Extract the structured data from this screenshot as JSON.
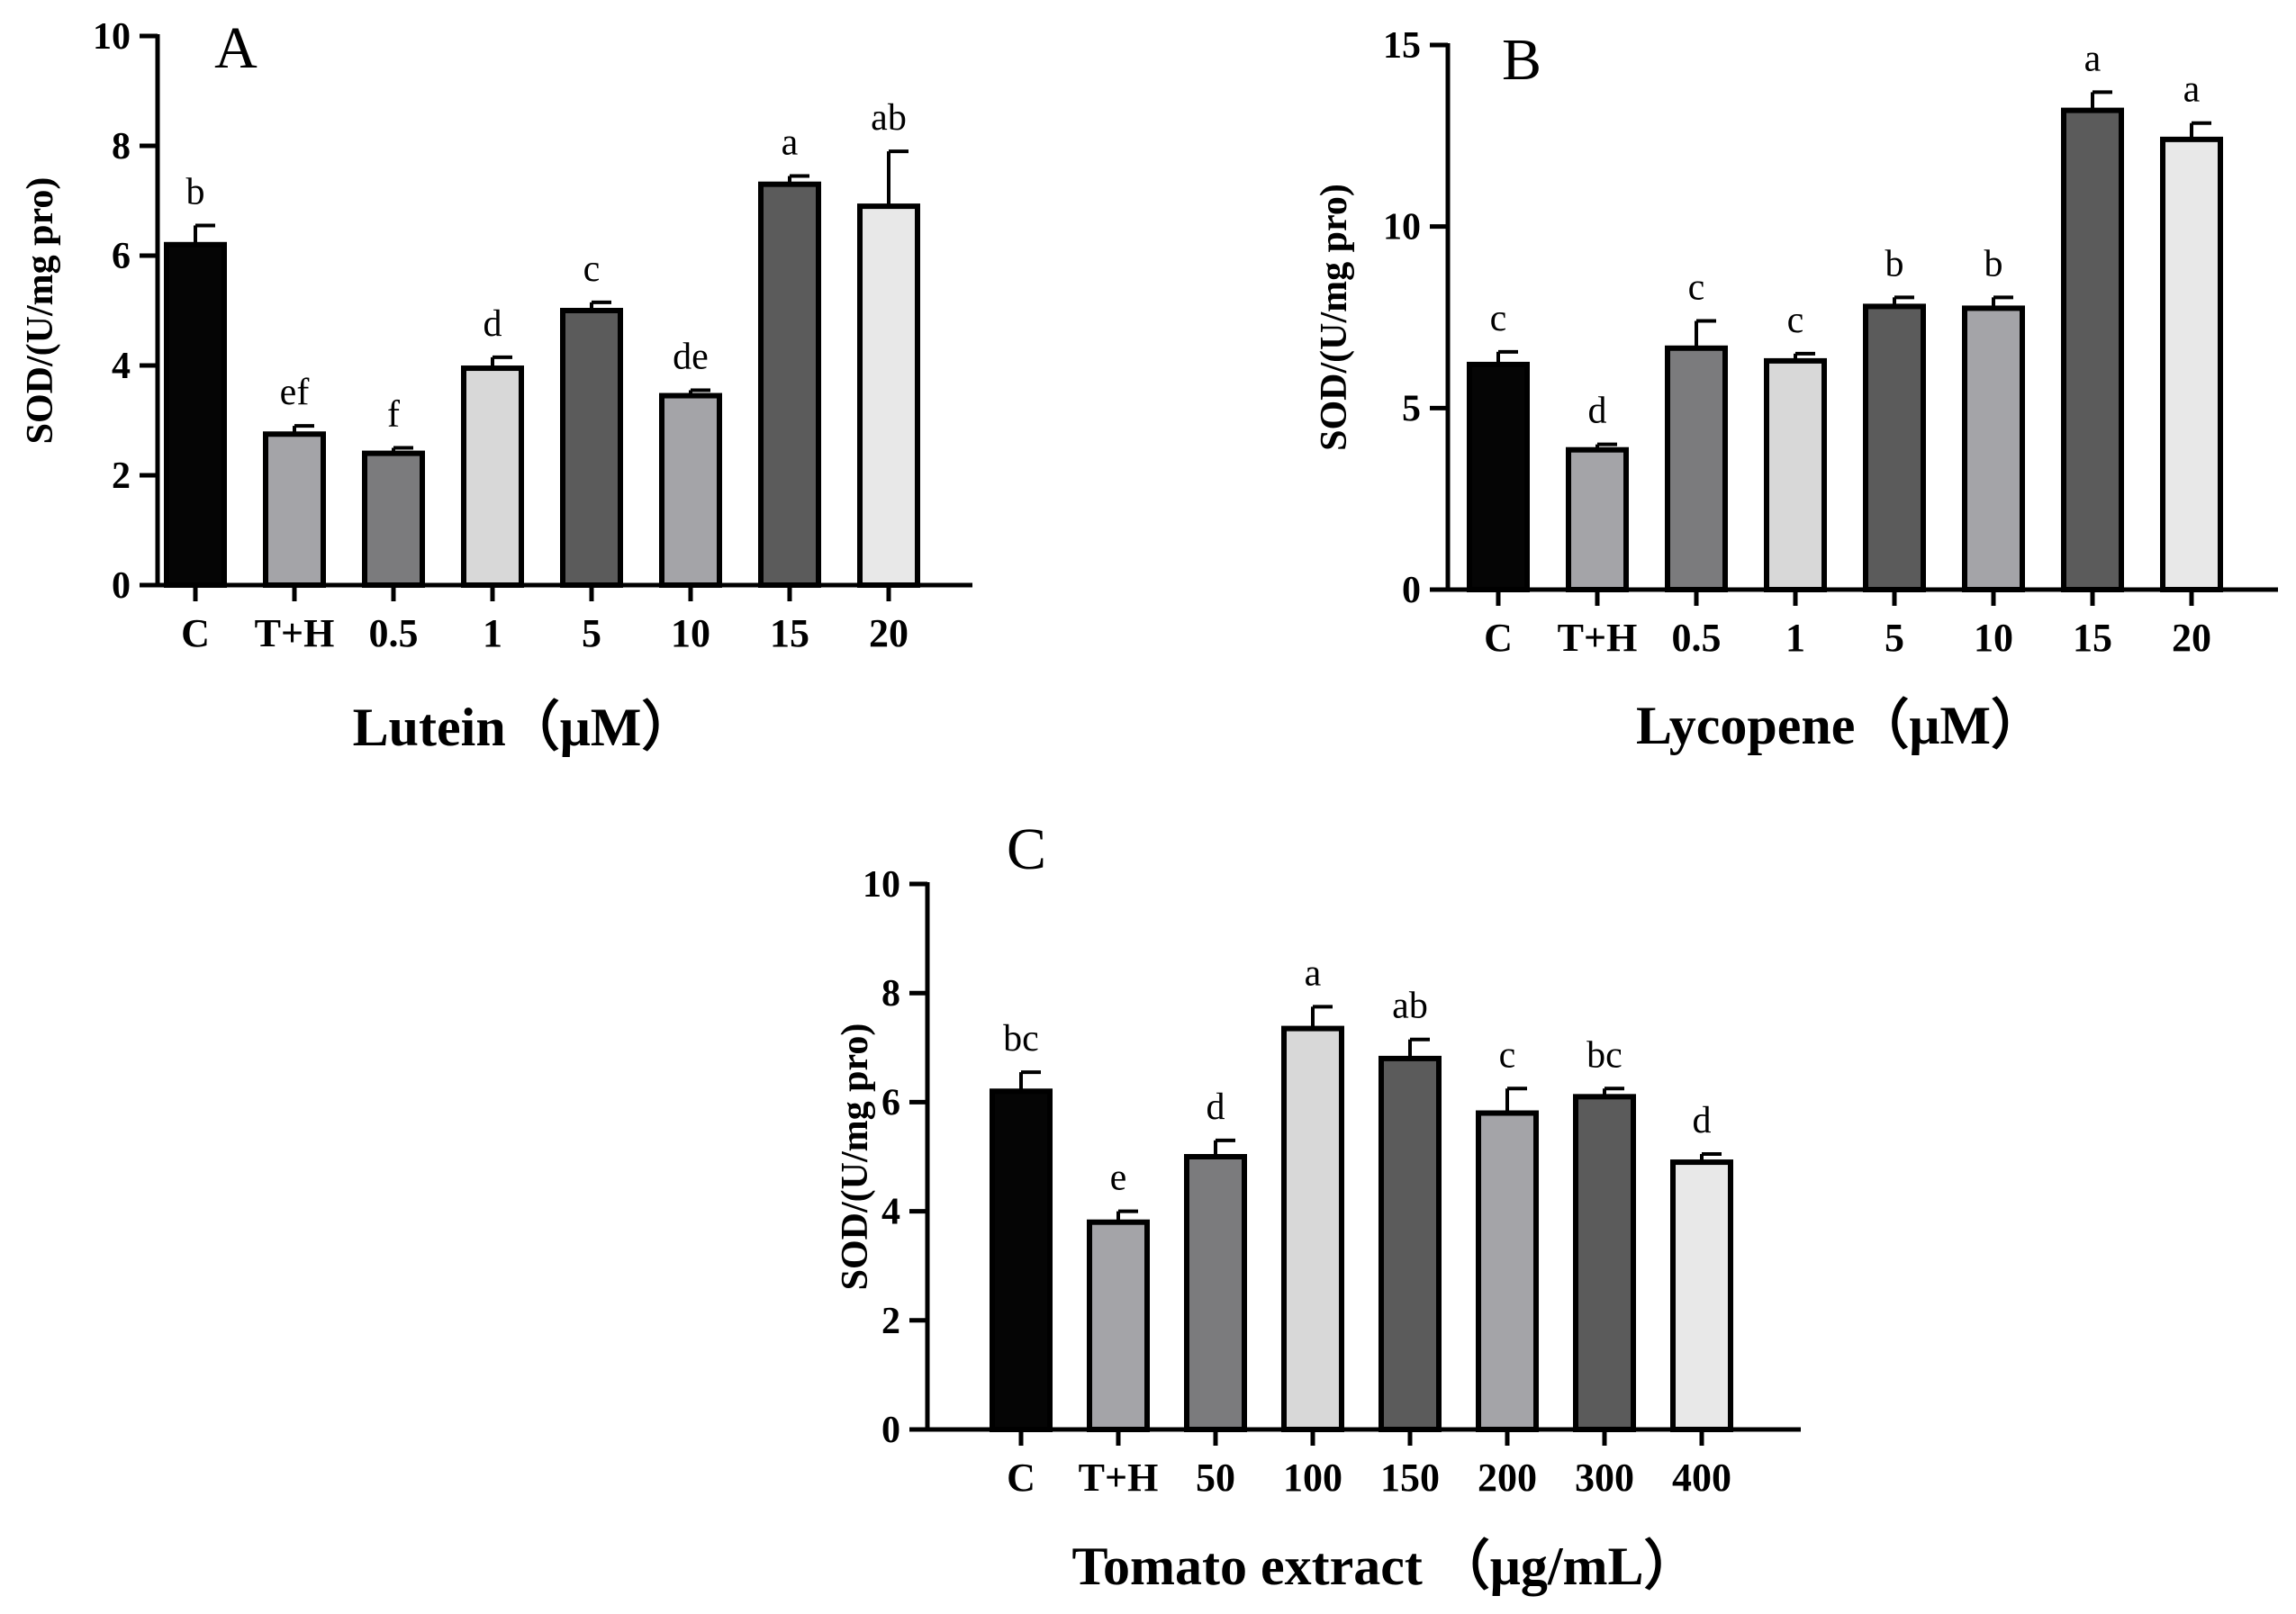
{
  "chart_data": [
    {
      "type": "bar",
      "panel": "A",
      "ylabel": "SOD/(U/mg pro)",
      "xlabel": "Lutein（μM）",
      "ylim": [
        0,
        10
      ],
      "yticks": [
        0,
        2,
        4,
        6,
        8,
        10
      ],
      "categories": [
        "C",
        "T+H",
        "0.5",
        "1",
        "5",
        "10",
        "15",
        "20"
      ],
      "values": [
        6.2,
        2.75,
        2.4,
        3.95,
        5.0,
        3.45,
        7.3,
        6.9
      ],
      "errors": [
        0.35,
        0.15,
        0.1,
        0.2,
        0.15,
        0.1,
        0.15,
        1.0
      ],
      "significance": [
        "b",
        "ef",
        "f",
        "d",
        "c",
        "de",
        "a",
        "ab"
      ],
      "colors": [
        "#050505",
        "#a4a4a8",
        "#7b7b7d",
        "#d8d8d8",
        "#5b5b5b",
        "#a4a4a8",
        "#5b5b5b",
        "#e8e8e8"
      ]
    },
    {
      "type": "bar",
      "panel": "B",
      "ylabel": "SOD/(U/mg pro)",
      "xlabel": "Lycopene（μM）",
      "ylim": [
        0,
        15
      ],
      "yticks": [
        0,
        5,
        10,
        15
      ],
      "categories": [
        "C",
        "T+H",
        "0.5",
        "1",
        "5",
        "10",
        "15",
        "20"
      ],
      "values": [
        6.2,
        3.85,
        6.65,
        6.3,
        7.8,
        7.75,
        13.2,
        12.4
      ],
      "errors": [
        0.35,
        0.15,
        0.75,
        0.2,
        0.25,
        0.3,
        0.5,
        0.45
      ],
      "significance": [
        "c",
        "d",
        "c",
        "c",
        "b",
        "b",
        "a",
        "a"
      ],
      "colors": [
        "#050505",
        "#a4a4a8",
        "#7b7b7d",
        "#d8d8d8",
        "#5b5b5b",
        "#a4a4a8",
        "#5b5b5b",
        "#e8e8e8"
      ]
    },
    {
      "type": "bar",
      "panel": "C",
      "ylabel": "SOD/(U/mg pro)",
      "xlabel": "Tomato extract （μg/mL）",
      "ylim": [
        0,
        10
      ],
      "yticks": [
        0,
        2,
        4,
        6,
        8,
        10
      ],
      "categories": [
        "C",
        "T+H",
        "50",
        "100",
        "150",
        "200",
        "300",
        "400"
      ],
      "values": [
        6.2,
        3.8,
        5.0,
        7.35,
        6.8,
        5.8,
        6.1,
        4.9
      ],
      "errors": [
        0.35,
        0.2,
        0.3,
        0.4,
        0.35,
        0.45,
        0.15,
        0.15
      ],
      "significance": [
        "bc",
        "e",
        "d",
        "a",
        "ab",
        "c",
        "bc",
        "d"
      ],
      "colors": [
        "#050505",
        "#a4a4a8",
        "#7b7b7d",
        "#d8d8d8",
        "#5b5b5b",
        "#a4a4a8",
        "#5b5b5b",
        "#e8e8e8"
      ]
    }
  ]
}
